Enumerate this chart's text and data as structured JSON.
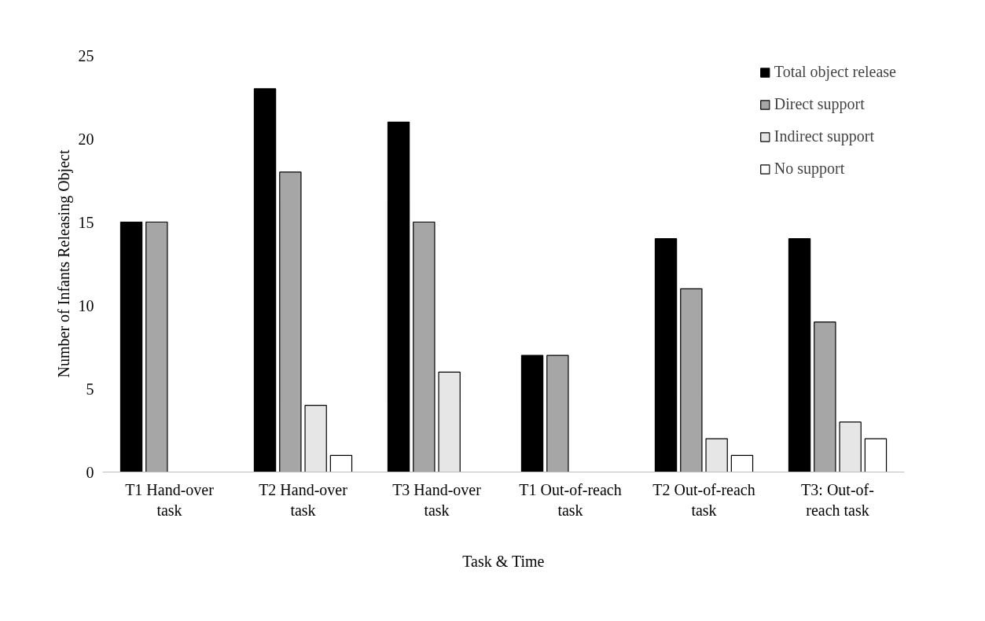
{
  "chart_data": {
    "type": "bar",
    "xlabel": "Task & Time",
    "ylabel": "Number of Infants Releasing Object",
    "categories": [
      "T1 Hand-over task",
      "T2 Hand-over task",
      "T3 Hand-over task",
      "T1 Out-of-reach task",
      "T2 Out-of-reach task",
      "T3: Out-of-reach task"
    ],
    "series": [
      {
        "name": "Total object release",
        "color": "#000000",
        "values": [
          15,
          23,
          21,
          7,
          14,
          14
        ]
      },
      {
        "name": "Direct support",
        "color": "#a6a6a6",
        "values": [
          15,
          18,
          15,
          7,
          11,
          9
        ]
      },
      {
        "name": "Indirect support",
        "color": "#e7e6e6",
        "values": [
          0,
          4,
          6,
          0,
          2,
          3
        ]
      },
      {
        "name": "No support",
        "color": "#ffffff",
        "values": [
          0,
          1,
          0,
          0,
          1,
          2
        ]
      }
    ],
    "ylim": [
      0,
      25
    ],
    "yticks": [
      0,
      5,
      10,
      15,
      20,
      25
    ],
    "grid": false,
    "legend": "top right"
  }
}
